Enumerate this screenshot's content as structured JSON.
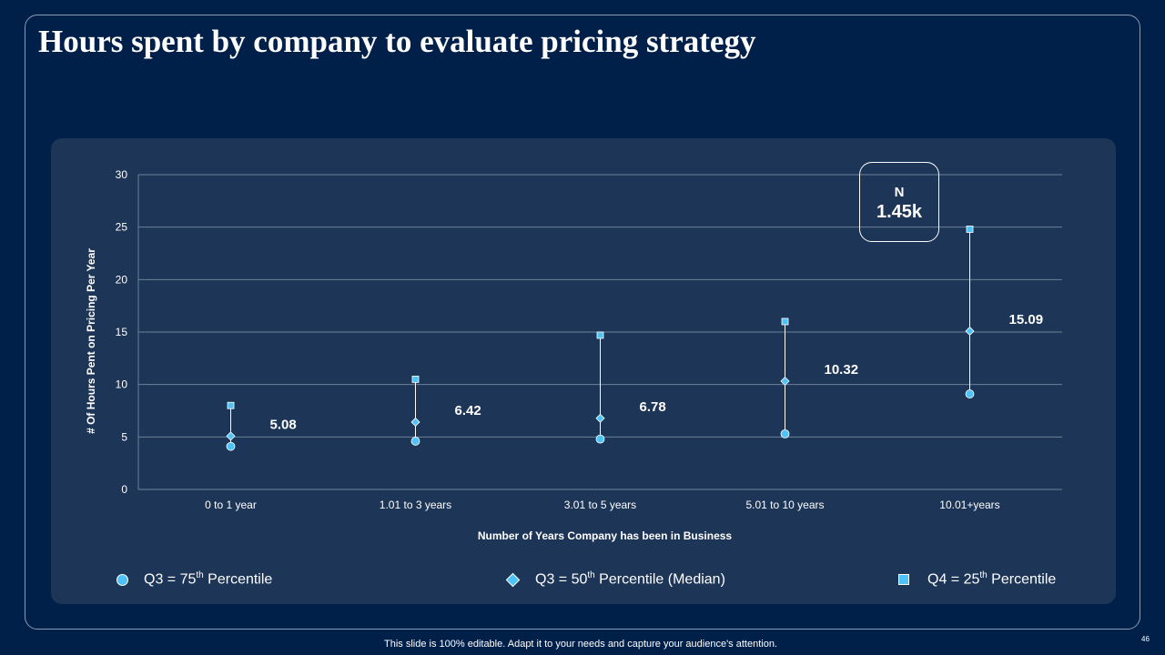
{
  "title": "Hours spent by company to evaluate pricing strategy",
  "n_box": {
    "label": "N",
    "value": "1.45k"
  },
  "legend": {
    "q75": {
      "prefix": "Q3 = 75",
      "sup": "th",
      "suffix": " Percentile"
    },
    "q50": {
      "prefix": "Q3 = 50",
      "sup": "th",
      "suffix": " Percentile (Median)"
    },
    "q25": {
      "prefix": "Q4 = 25",
      "sup": "th",
      "suffix": " Percentile"
    }
  },
  "footer": "This slide is 100% editable. Adapt it to your needs and capture your audience's attention.",
  "page_number": "46",
  "colors": {
    "background": "#00204a",
    "panel": "#1d3557",
    "marker": "#4fc3f7",
    "grid": "#6f8199"
  },
  "chart_data": {
    "type": "scatter",
    "xlabel": "Number of Years Company has been in Business",
    "ylabel": "# Of Hours Pent on Pricing Per Year",
    "ylim": [
      0,
      30
    ],
    "yticks": [
      0,
      5,
      10,
      15,
      20,
      25,
      30
    ],
    "grid": true,
    "legend_position": "bottom",
    "categories": [
      "0 to 1 year",
      "1.01 to 3 years",
      "3.01 to 5 years",
      "5.01 to 10 years",
      "10.01+years"
    ],
    "series": [
      {
        "name": "Q3 = 75th Percentile",
        "marker": "circle",
        "values": [
          4.1,
          4.6,
          4.8,
          5.3,
          9.1
        ]
      },
      {
        "name": "Q3 = 50th Percentile (Median)",
        "marker": "diamond",
        "values": [
          5.08,
          6.42,
          6.78,
          10.32,
          15.09
        ]
      },
      {
        "name": "Q4 = 25th Percentile",
        "marker": "square",
        "values": [
          8.0,
          10.5,
          14.7,
          16.0,
          24.8
        ]
      }
    ],
    "data_labels": [
      "5.08",
      "6.42",
      "6.78",
      "10.32",
      "15.09"
    ]
  }
}
